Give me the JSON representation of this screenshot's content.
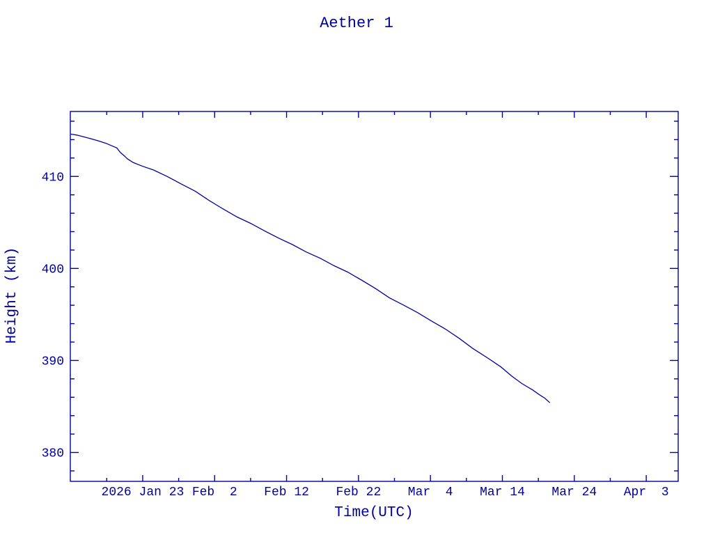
{
  "page": {
    "background": "#ffffff",
    "accent_color": "#0000a0"
  },
  "chart_data": {
    "type": "line",
    "title": "Aether 1",
    "xlabel": "Time(UTC)",
    "ylabel": "Height (km)",
    "line_color": "#0000a0",
    "axis_color": "#0000a0",
    "grid": false,
    "legend": false,
    "x_unit": "day of year 2026",
    "xlim": [
      12.94,
      97.44
    ],
    "ylim": [
      376.86,
      417.06
    ],
    "x_major_ticks": [
      {
        "day": 23,
        "label": "2026 Jan 23"
      },
      {
        "day": 33,
        "label": "Feb  2"
      },
      {
        "day": 43,
        "label": "Feb 12"
      },
      {
        "day": 53,
        "label": "Feb 22"
      },
      {
        "day": 63,
        "label": "Mar  4"
      },
      {
        "day": 73,
        "label": "Mar 14"
      },
      {
        "day": 83,
        "label": "Mar 24"
      },
      {
        "day": 93,
        "label": "Apr  3"
      }
    ],
    "x_minor_tick_days": [
      18,
      28,
      38,
      48,
      58,
      68,
      78,
      88
    ],
    "y_major_ticks": [
      {
        "km": 380,
        "label": "380"
      },
      {
        "km": 390,
        "label": "390"
      },
      {
        "km": 400,
        "label": "400"
      },
      {
        "km": 410,
        "label": "410"
      }
    ],
    "y_minor_tick_kms": [
      378,
      382,
      384,
      386,
      388,
      392,
      394,
      396,
      398,
      402,
      404,
      406,
      408,
      412,
      414,
      416
    ],
    "series": [
      {
        "name": "Aether 1 height",
        "points": [
          [
            13.0,
            414.6
          ],
          [
            13.8,
            414.5
          ],
          [
            15.3,
            414.2
          ],
          [
            16.7,
            413.9
          ],
          [
            17.9,
            413.6
          ],
          [
            18.8,
            413.3
          ],
          [
            19.4,
            413.1
          ],
          [
            19.9,
            412.6
          ],
          [
            20.5,
            412.2
          ],
          [
            20.9,
            411.9
          ],
          [
            21.7,
            411.5
          ],
          [
            23.0,
            411.1
          ],
          [
            24.5,
            410.7
          ],
          [
            26.4,
            410.0
          ],
          [
            28.3,
            409.2
          ],
          [
            30.3,
            408.4
          ],
          [
            32.2,
            407.4
          ],
          [
            34.1,
            406.5
          ],
          [
            36.1,
            405.6
          ],
          [
            38.0,
            404.9
          ],
          [
            39.9,
            404.1
          ],
          [
            41.9,
            403.3
          ],
          [
            43.8,
            402.6
          ],
          [
            45.7,
            401.8
          ],
          [
            47.7,
            401.1
          ],
          [
            49.6,
            400.3
          ],
          [
            51.5,
            399.6
          ],
          [
            53.5,
            398.7
          ],
          [
            55.4,
            397.8
          ],
          [
            57.3,
            396.8
          ],
          [
            59.3,
            396.0
          ],
          [
            61.2,
            395.2
          ],
          [
            63.1,
            394.3
          ],
          [
            65.1,
            393.4
          ],
          [
            67.0,
            392.4
          ],
          [
            68.9,
            391.3
          ],
          [
            70.9,
            390.3
          ],
          [
            72.8,
            389.3
          ],
          [
            74.3,
            388.3
          ],
          [
            75.7,
            387.5
          ],
          [
            77.2,
            386.8
          ],
          [
            78.1,
            386.3
          ],
          [
            78.9,
            385.9
          ],
          [
            79.6,
            385.4
          ]
        ]
      }
    ]
  }
}
